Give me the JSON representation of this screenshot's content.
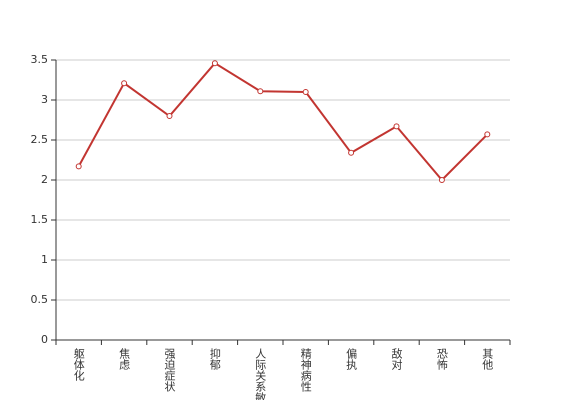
{
  "chart_data": {
    "type": "line",
    "categories": [
      "躯体化",
      "焦虑",
      "强迫症状",
      "抑郁",
      "人际关系敏感",
      "精神病性",
      "偏执",
      "敌对",
      "恐怖",
      "其他"
    ],
    "series": [
      {
        "color": "#c23531",
        "values": [
          2.17,
          3.21,
          2.8,
          3.46,
          3.11,
          3.1,
          2.34,
          2.67,
          2.0,
          2.57
        ]
      }
    ],
    "ylim": [
      0,
      3.5
    ],
    "yticks": [
      0,
      0.5,
      1,
      1.5,
      2,
      2.5,
      3,
      3.5
    ],
    "grid": true
  }
}
